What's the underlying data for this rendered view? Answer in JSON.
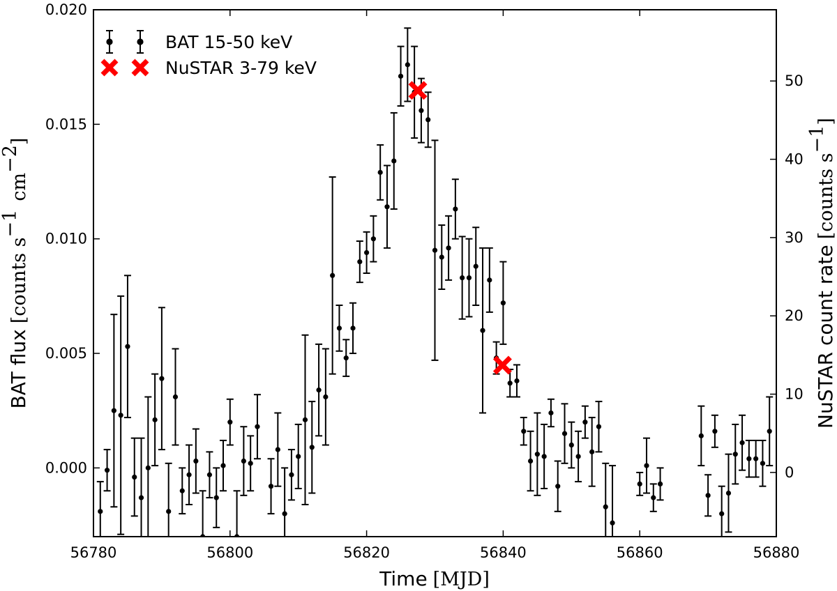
{
  "chart_data": {
    "type": "scatter",
    "xlabel": "Time",
    "xlabel_unit": "[MJD]",
    "ylabel_left": "BAT flux",
    "ylabel_left_unit": "[counts s",
    "ylabel_left_unit_mid": "cm",
    "ylabel_left_exp1": "−1",
    "ylabel_left_exp2": "−2",
    "ylabel_right": "NuSTAR count rate",
    "ylabel_right_unit": "[counts s",
    "ylabel_right_exp": "−1",
    "xlim": [
      56780,
      56880
    ],
    "ylim_left": [
      -0.003,
      0.02
    ],
    "ylim_right": [
      -8.2,
      59.1
    ],
    "xticks": [
      56780,
      56800,
      56820,
      56840,
      56860,
      56880
    ],
    "xtick_labels": [
      "56780",
      "56800",
      "56820",
      "56840",
      "56860",
      "56880"
    ],
    "yticks_left": [
      0.0,
      0.005,
      0.01,
      0.015,
      0.02
    ],
    "ytick_labels_left": [
      "0.000",
      "0.005",
      "0.010",
      "0.015",
      "0.020"
    ],
    "yticks_right": [
      0,
      10,
      20,
      30,
      40,
      50
    ],
    "ytick_labels_right": [
      "0",
      "10",
      "20",
      "30",
      "40",
      "50"
    ],
    "grid": false,
    "legend_position": "top-left",
    "colors": {
      "bat": "#000000",
      "nustar": "#ff0000"
    },
    "series": [
      {
        "name": "BAT 15-50 keV",
        "marker": "point-errorbar",
        "axis": "left",
        "points": [
          [
            56781,
            -0.0019,
            0.0013
          ],
          [
            56782,
            -0.0001,
            0.0009
          ],
          [
            56783,
            0.0025,
            0.0042
          ],
          [
            56784,
            0.0023,
            0.0052
          ],
          [
            56785,
            0.0053,
            0.0031
          ],
          [
            56786,
            -0.0004,
            0.0017
          ],
          [
            56787,
            -0.0013,
            0.0026
          ],
          [
            56788,
            0.0,
            0.0031
          ],
          [
            56789,
            0.0021,
            0.002
          ],
          [
            56790,
            0.0039,
            0.0031
          ],
          [
            56791,
            -0.0019,
            0.0021
          ],
          [
            56792,
            0.0031,
            0.0021
          ],
          [
            56793,
            -0.001,
            0.001
          ],
          [
            56794,
            -0.0003,
            0.0013
          ],
          [
            56795,
            0.0003,
            0.0014
          ],
          [
            56796,
            -0.003,
            0.002
          ],
          [
            56797,
            -0.0003,
            0.001
          ],
          [
            56798,
            -0.0013,
            0.0013
          ],
          [
            56799,
            0.0001,
            0.0011
          ],
          [
            56800,
            0.002,
            0.001
          ],
          [
            56801,
            -0.003,
            0.002
          ],
          [
            56802,
            0.0003,
            0.0015
          ],
          [
            56803,
            0.0002,
            0.0012
          ],
          [
            56804,
            0.0018,
            0.0014
          ],
          [
            56806,
            -0.0008,
            0.0012
          ],
          [
            56807,
            0.0008,
            0.0016
          ],
          [
            56808,
            -0.002,
            0.002
          ],
          [
            56809,
            -0.0003,
            0.0011
          ],
          [
            56810,
            0.0005,
            0.0014
          ],
          [
            56811,
            0.0021,
            0.0037
          ],
          [
            56812,
            0.0009,
            0.002
          ],
          [
            56813,
            0.0034,
            0.002
          ],
          [
            56814,
            0.0031,
            0.0021
          ],
          [
            56815,
            0.0084,
            0.0043
          ],
          [
            56816,
            0.0061,
            0.001
          ],
          [
            56817,
            0.0048,
            0.0008
          ],
          [
            56818,
            0.0061,
            0.0011
          ],
          [
            56819,
            0.009,
            0.0009
          ],
          [
            56820,
            0.0094,
            0.0009
          ],
          [
            56821,
            0.01,
            0.001
          ],
          [
            56822,
            0.0129,
            0.0012
          ],
          [
            56823,
            0.0114,
            0.0018
          ],
          [
            56824,
            0.0134,
            0.0021
          ],
          [
            56825,
            0.0171,
            0.0013
          ],
          [
            56826,
            0.0176,
            0.0016
          ],
          [
            56827,
            0.0164,
            0.002
          ],
          [
            56828,
            0.0156,
            0.0014
          ],
          [
            56829,
            0.0152,
            0.0012
          ],
          [
            56830,
            0.0095,
            0.0048
          ],
          [
            56831,
            0.0092,
            0.0014
          ],
          [
            56832,
            0.0096,
            0.0014
          ],
          [
            56833,
            0.0113,
            0.0013
          ],
          [
            56834,
            0.0083,
            0.0018
          ],
          [
            56835,
            0.0083,
            0.0017
          ],
          [
            56836,
            0.0088,
            0.0017
          ],
          [
            56837,
            0.006,
            0.0036
          ],
          [
            56838,
            0.0082,
            0.0014
          ],
          [
            56839,
            0.0048,
            0.0007
          ],
          [
            56840,
            0.0072,
            0.0018
          ],
          [
            56841,
            0.0037,
            0.0006
          ],
          [
            56842,
            0.0038,
            0.0007
          ],
          [
            56843,
            0.0016,
            0.0006
          ],
          [
            56844,
            0.0003,
            0.0013
          ],
          [
            56845,
            0.0006,
            0.0018
          ],
          [
            56846,
            0.0005,
            0.0014
          ],
          [
            56847,
            0.0024,
            0.0006
          ],
          [
            56848,
            -0.0008,
            0.0011
          ],
          [
            56849,
            0.0015,
            0.0013
          ],
          [
            56850,
            0.001,
            0.001
          ],
          [
            56851,
            0.0005,
            0.0011
          ],
          [
            56852,
            0.002,
            0.0007
          ],
          [
            56853,
            0.0007,
            0.0015
          ],
          [
            56854,
            0.0018,
            0.0011
          ],
          [
            56855,
            -0.0017,
            0.0019
          ],
          [
            56856,
            -0.0024,
            0.0025
          ],
          [
            56860,
            -0.0007,
            0.0005
          ],
          [
            56861,
            0.0001,
            0.0012
          ],
          [
            56862,
            -0.0013,
            0.0006
          ],
          [
            56863,
            -0.0007,
            0.0007
          ],
          [
            56869,
            0.0014,
            0.0013
          ],
          [
            56870,
            -0.0012,
            0.0009
          ],
          [
            56871,
            0.0016,
            0.0007
          ],
          [
            56872,
            -0.002,
            0.0012
          ],
          [
            56873,
            -0.0011,
            0.0017
          ],
          [
            56874,
            0.0006,
            0.0013
          ],
          [
            56875,
            0.0011,
            0.0012
          ],
          [
            56876,
            0.0004,
            0.0008
          ],
          [
            56877,
            0.0004,
            0.0008
          ],
          [
            56878,
            0.0002,
            0.001
          ],
          [
            56879,
            0.0016,
            0.0015
          ]
        ]
      },
      {
        "name": "NuSTAR 3-79 keV",
        "marker": "x",
        "axis": "right",
        "points": [
          [
            56827.5,
            48.8
          ],
          [
            56839.9,
            13.7
          ]
        ]
      }
    ]
  }
}
